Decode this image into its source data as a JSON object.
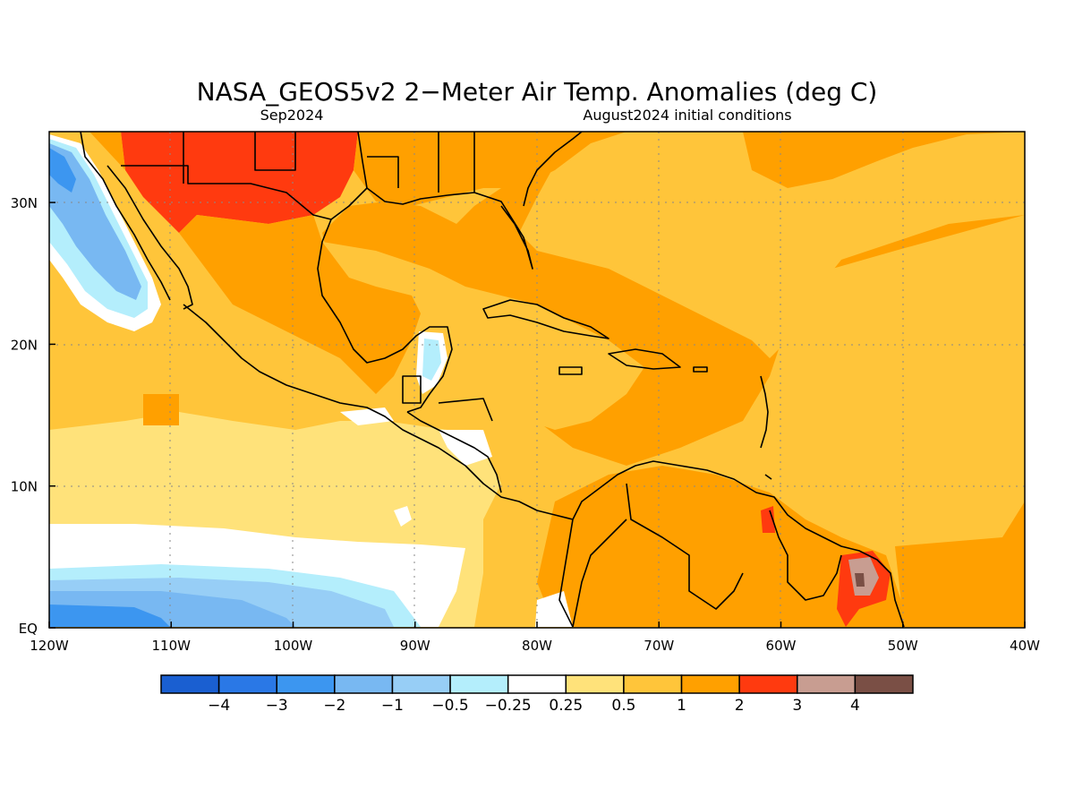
{
  "title": "NASA_GEOS5v2 2−Meter Air Temp. Anomalies (deg C)",
  "subtitle_left": "Sep2024",
  "subtitle_right": "August2024 initial conditions",
  "map": {
    "lon_ticks": [
      "120W",
      "110W",
      "100W",
      "90W",
      "80W",
      "70W",
      "60W",
      "50W",
      "40W"
    ],
    "lat_ticks": [
      "EQ",
      "10N",
      "20N",
      "30N"
    ],
    "land_outline_color": "#000000",
    "ocean_base_color": "#ffc53a"
  },
  "colorbar": {
    "labels": [
      "−4",
      "−3",
      "−2",
      "−1",
      "−0.5",
      "−0.25",
      "0.25",
      "0.5",
      "1",
      "2",
      "3",
      "4"
    ],
    "colors": [
      "#1a5fd1",
      "#2a78e6",
      "#3c96f0",
      "#78b8f2",
      "#97cef6",
      "#b4eefc",
      "#ffffff",
      "#ffe27a",
      "#ffc53a",
      "#ffa000",
      "#ff3a0f",
      "#c89d91",
      "#7a4f45"
    ]
  }
}
